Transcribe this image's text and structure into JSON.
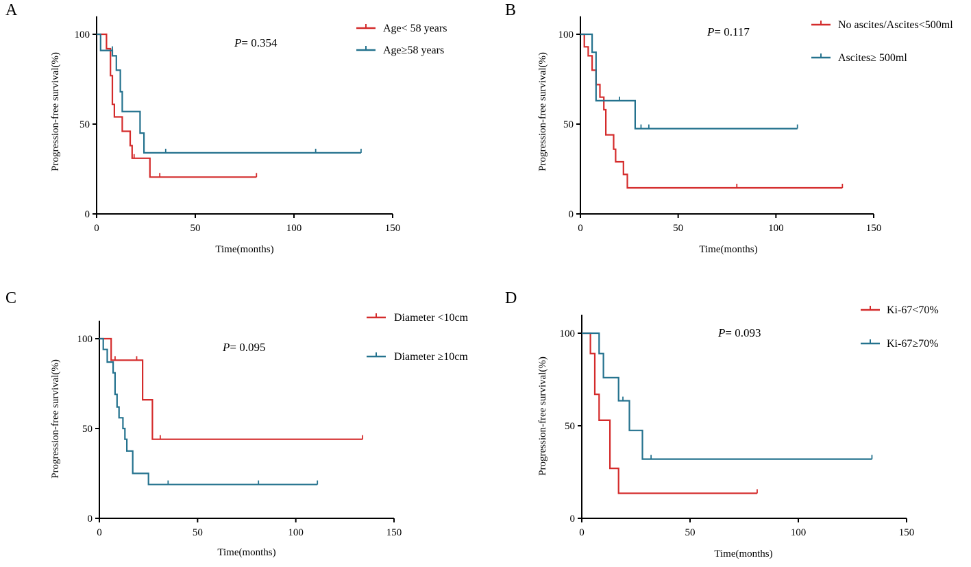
{
  "colors": {
    "red": "#d42b2b",
    "teal": "#24728e",
    "axis": "#000000"
  },
  "chart_data": [
    {
      "panel": "A",
      "type": "line",
      "title": "",
      "xlabel": "Time(months)",
      "ylabel": "Progression-free survival(%)",
      "xlim": [
        0,
        150
      ],
      "ylim": [
        0,
        110
      ],
      "xticks": [
        "0",
        "50",
        "100",
        "150"
      ],
      "yticks": [
        "0",
        "50",
        "100"
      ],
      "p_label": "P",
      "p_value": "= 0.354",
      "series": [
        {
          "name": "Age< 58 years",
          "color": "#d42b2b",
          "steps": [
            [
              0,
              100
            ],
            [
              5,
              100
            ],
            [
              5,
              92
            ],
            [
              7,
              92
            ],
            [
              7,
              77
            ],
            [
              8,
              77
            ],
            [
              8,
              61
            ],
            [
              9,
              61
            ],
            [
              9,
              54
            ],
            [
              13,
              54
            ],
            [
              13,
              46
            ],
            [
              17,
              46
            ],
            [
              17,
              38
            ],
            [
              18,
              38
            ],
            [
              18,
              31
            ],
            [
              27,
              31
            ],
            [
              27,
              20.5
            ],
            [
              81,
              20.5
            ]
          ],
          "censors": [
            [
              19,
              31
            ],
            [
              32,
              20.5
            ],
            [
              81,
              20.5
            ]
          ]
        },
        {
          "name": "Age≥58 years",
          "color": "#24728e",
          "steps": [
            [
              0,
              100
            ],
            [
              2,
              100
            ],
            [
              2,
              91
            ],
            [
              8,
              91
            ],
            [
              8,
              88
            ],
            [
              10,
              88
            ],
            [
              10,
              80
            ],
            [
              12,
              80
            ],
            [
              12,
              68
            ],
            [
              13,
              68
            ],
            [
              13,
              57
            ],
            [
              22,
              57
            ],
            [
              22,
              45
            ],
            [
              24,
              45
            ],
            [
              24,
              34
            ],
            [
              134,
              34
            ]
          ],
          "censors": [
            [
              8,
              91
            ],
            [
              35,
              34
            ],
            [
              111,
              34
            ],
            [
              134,
              34
            ]
          ]
        }
      ],
      "legend": "top-right"
    },
    {
      "panel": "B",
      "type": "line",
      "title": "",
      "xlabel": "Time(months)",
      "ylabel": "Progression-free survival(%)",
      "xlim": [
        0,
        150
      ],
      "ylim": [
        0,
        110
      ],
      "xticks": [
        "0",
        "50",
        "100",
        "150"
      ],
      "yticks": [
        "0",
        "50",
        "100"
      ],
      "p_label": "P",
      "p_value": "= 0.117",
      "series": [
        {
          "name": "No ascites/Ascites<500ml",
          "color": "#d42b2b",
          "steps": [
            [
              0,
              100
            ],
            [
              2,
              100
            ],
            [
              2,
              93
            ],
            [
              4,
              93
            ],
            [
              4,
              88
            ],
            [
              6,
              88
            ],
            [
              6,
              80
            ],
            [
              8,
              80
            ],
            [
              8,
              72
            ],
            [
              10,
              72
            ],
            [
              10,
              65
            ],
            [
              12,
              65
            ],
            [
              12,
              58
            ],
            [
              13,
              58
            ],
            [
              13,
              44
            ],
            [
              17,
              44
            ],
            [
              17,
              36
            ],
            [
              18,
              36
            ],
            [
              18,
              29
            ],
            [
              22,
              29
            ],
            [
              22,
              22
            ],
            [
              24,
              22
            ],
            [
              24,
              14.5
            ],
            [
              134,
              14.5
            ]
          ],
          "censors": [
            [
              80,
              14.5
            ],
            [
              134,
              14.5
            ]
          ]
        },
        {
          "name": "Ascites≥ 500ml",
          "color": "#24728e",
          "steps": [
            [
              0,
              100
            ],
            [
              6,
              100
            ],
            [
              6,
              90
            ],
            [
              8,
              90
            ],
            [
              8,
              63
            ],
            [
              28,
              63
            ],
            [
              28,
              47.5
            ],
            [
              111,
              47.5
            ]
          ],
          "censors": [
            [
              20,
              63
            ],
            [
              31,
              47.5
            ],
            [
              35,
              47.5
            ],
            [
              111,
              47.5
            ]
          ]
        }
      ],
      "legend": "top-right"
    },
    {
      "panel": "C",
      "type": "line",
      "title": "",
      "xlabel": "Time(months)",
      "ylabel": "Progression-free survival(%)",
      "xlim": [
        0,
        150
      ],
      "ylim": [
        0,
        110
      ],
      "xticks": [
        "0",
        "50",
        "100",
        "150"
      ],
      "yticks": [
        "0",
        "50",
        "100"
      ],
      "p_label": "P",
      "p_value": "= 0.095",
      "series": [
        {
          "name": "Diameter <10cm",
          "color": "#d42b2b",
          "steps": [
            [
              0,
              100
            ],
            [
              6,
              100
            ],
            [
              6,
              88
            ],
            [
              22,
              88
            ],
            [
              22,
              66
            ],
            [
              27,
              66
            ],
            [
              27,
              44
            ],
            [
              134,
              44
            ]
          ],
          "censors": [
            [
              8,
              88
            ],
            [
              19,
              88
            ],
            [
              31,
              44
            ],
            [
              134,
              44
            ]
          ]
        },
        {
          "name": "Diameter ≥10cm",
          "color": "#24728e",
          "steps": [
            [
              0,
              100
            ],
            [
              2,
              100
            ],
            [
              2,
              94
            ],
            [
              4,
              94
            ],
            [
              4,
              87
            ],
            [
              7,
              87
            ],
            [
              7,
              81
            ],
            [
              8,
              81
            ],
            [
              8,
              69
            ],
            [
              9,
              69
            ],
            [
              9,
              62
            ],
            [
              10,
              62
            ],
            [
              10,
              56
            ],
            [
              12,
              56
            ],
            [
              12,
              50
            ],
            [
              13,
              50
            ],
            [
              13,
              44
            ],
            [
              14,
              44
            ],
            [
              14,
              37.5
            ],
            [
              17,
              37.5
            ],
            [
              17,
              25
            ],
            [
              25,
              25
            ],
            [
              25,
              18.8
            ],
            [
              111,
              18.8
            ]
          ],
          "censors": [
            [
              35,
              18.8
            ],
            [
              81,
              18.8
            ],
            [
              111,
              18.8
            ]
          ]
        }
      ],
      "legend": "top-right"
    },
    {
      "panel": "D",
      "type": "line",
      "title": "",
      "xlabel": "Time(months)",
      "ylabel": "Progression-free survival(%)",
      "xlim": [
        0,
        150
      ],
      "ylim": [
        0,
        110
      ],
      "xticks": [
        "0",
        "50",
        "100",
        "150"
      ],
      "yticks": [
        "0",
        "50",
        "100"
      ],
      "p_label": "P",
      "p_value": "= 0.093",
      "series": [
        {
          "name": "Ki-67<70%",
          "color": "#d42b2b",
          "steps": [
            [
              0,
              100
            ],
            [
              4,
              100
            ],
            [
              4,
              89
            ],
            [
              6,
              89
            ],
            [
              6,
              67
            ],
            [
              8,
              67
            ],
            [
              8,
              53
            ],
            [
              13,
              53
            ],
            [
              13,
              27
            ],
            [
              17,
              27
            ],
            [
              17,
              13.5
            ],
            [
              81,
              13.5
            ]
          ],
          "censors": [
            [
              81,
              13.5
            ]
          ]
        },
        {
          "name": "Ki-67≥70%",
          "color": "#24728e",
          "steps": [
            [
              0,
              100
            ],
            [
              8,
              100
            ],
            [
              8,
              89
            ],
            [
              10,
              89
            ],
            [
              10,
              76
            ],
            [
              17,
              76
            ],
            [
              17,
              63.5
            ],
            [
              22,
              63.5
            ],
            [
              22,
              47.5
            ],
            [
              28,
              47.5
            ],
            [
              28,
              32
            ],
            [
              134,
              32
            ]
          ],
          "censors": [
            [
              19,
              63.5
            ],
            [
              32,
              32
            ],
            [
              134,
              32
            ]
          ]
        }
      ],
      "legend": "top-right"
    }
  ]
}
